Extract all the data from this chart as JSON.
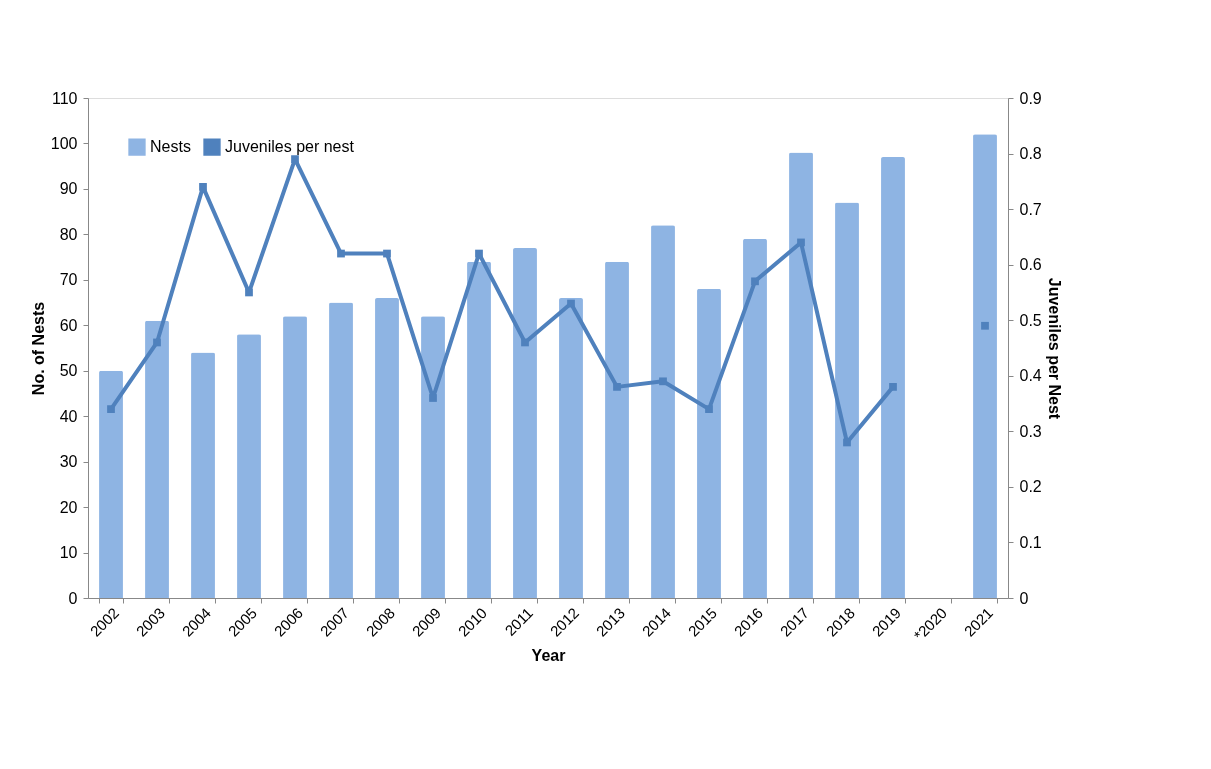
{
  "chart_data": {
    "type": "bar",
    "xlabel": "Year",
    "ylabel": "No. of Nests",
    "y2label": "Juveniles per Nest",
    "categories": [
      "2002",
      "2003",
      "2004",
      "2005",
      "2006",
      "2007",
      "2008",
      "2009",
      "2010",
      "2011",
      "2012",
      "2013",
      "2014",
      "2015",
      "2016",
      "2017",
      "2018",
      "2019",
      "*2020",
      "2021"
    ],
    "series": [
      {
        "name": "Nests",
        "color": "#8eb4e3",
        "values": [
          50,
          61,
          54,
          58,
          62,
          65,
          66,
          62,
          74,
          77,
          66,
          74,
          82,
          68,
          79,
          98,
          87,
          97,
          null,
          102
        ]
      },
      {
        "name": "Juveniles per nest",
        "type": "line",
        "axis": "y2",
        "color": "#4f81bd",
        "marker": "square",
        "values": [
          0.34,
          0.46,
          0.74,
          0.55,
          0.79,
          0.62,
          0.62,
          0.36,
          0.62,
          0.46,
          0.53,
          0.38,
          0.39,
          0.34,
          0.57,
          0.64,
          0.28,
          0.38,
          null,
          0.49
        ]
      }
    ],
    "ylim": [
      0,
      110
    ],
    "yticks": [
      0,
      10,
      20,
      30,
      40,
      50,
      60,
      70,
      80,
      90,
      100,
      110
    ],
    "y2lim": [
      0,
      0.9
    ],
    "y2ticks": [
      0,
      0.1,
      0.2,
      0.3,
      0.4,
      0.5,
      0.6,
      0.7,
      0.8,
      0.9
    ],
    "grid": false,
    "legend": "top left"
  }
}
